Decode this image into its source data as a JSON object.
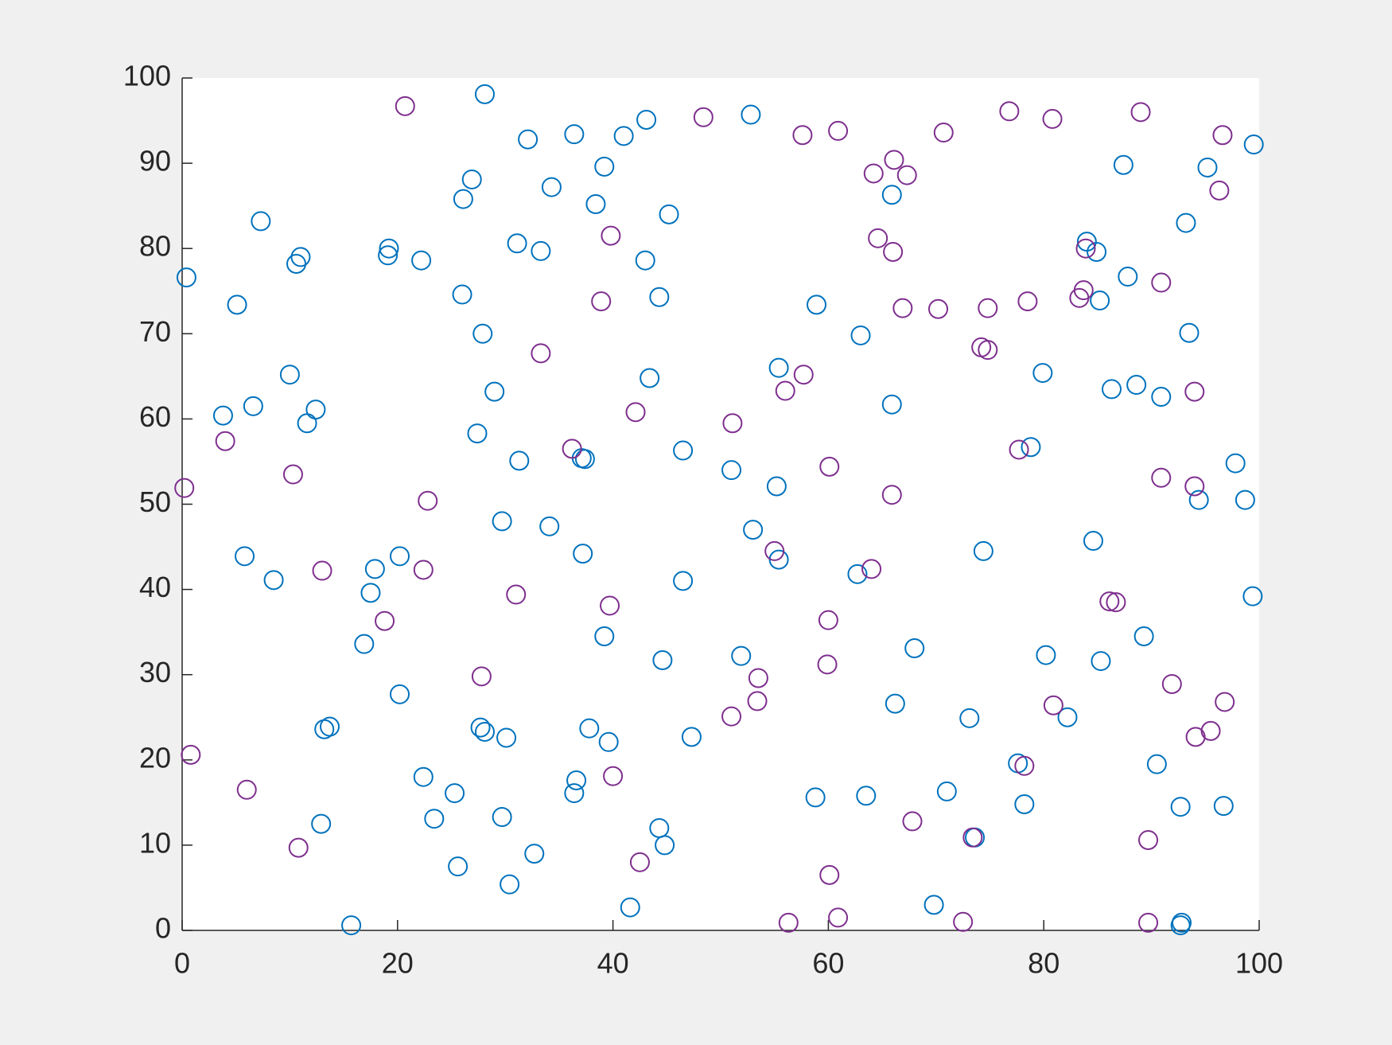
{
  "chart_data": {
    "type": "scatter",
    "marker": "open-circle",
    "xlim": [
      0,
      100
    ],
    "ylim": [
      0,
      100
    ],
    "xticks": [
      0,
      20,
      40,
      60,
      80,
      100
    ],
    "yticks": [
      0,
      10,
      20,
      30,
      40,
      50,
      60,
      70,
      80,
      90,
      100
    ],
    "grid": false,
    "series": [
      {
        "color": "#0072BD",
        "x": [
          0.4,
          7.3,
          5.1,
          10.6,
          11.0,
          19.2,
          19.1,
          22.2,
          26.9,
          26.1,
          28.1,
          32.1,
          36.4,
          34.3,
          39.2,
          38.4,
          41.0,
          43.1,
          45.2,
          43.0,
          44.3,
          31.1,
          33.3,
          26.0,
          27.9,
          52.8,
          58.9,
          63.0,
          65.9,
          55.4,
          43.4,
          29.0,
          27.4,
          31.3,
          37.1,
          37.4,
          46.5,
          51.0,
          55.2,
          29.7,
          34.1,
          37.2,
          53.0,
          55.4,
          46.5,
          62.7,
          65.9,
          79.9,
          78.8,
          87.4,
          84.0,
          84.9,
          87.8,
          85.2,
          86.3,
          88.6,
          90.9,
          93.5,
          93.2,
          95.2,
          99.5,
          97.8,
          94.4,
          98.7,
          99.4,
          84.6,
          74.4,
          89.3,
          85.3,
          80.2,
          68.0,
          66.2,
          73.1,
          82.2,
          77.6,
          90.5,
          78.2,
          71.0,
          63.5,
          58.8,
          92.7,
          96.7,
          73.6,
          69.8,
          92.7,
          92.8,
          51.9,
          44.6,
          39.2,
          47.3,
          39.6,
          37.8,
          30.1,
          27.7,
          28.1,
          36.6,
          36.4,
          44.3,
          44.8,
          29.7,
          32.7,
          30.4,
          41.6,
          22.4,
          25.3,
          23.4,
          25.6,
          20.2,
          16.9,
          17.5,
          17.9,
          20.2,
          13.2,
          13.7,
          12.9,
          15.7,
          5.8,
          8.5,
          3.8,
          6.6,
          10.0,
          12.4,
          11.6
        ],
        "y": [
          76.6,
          83.2,
          73.4,
          78.2,
          79.0,
          80.0,
          79.2,
          78.6,
          88.1,
          85.8,
          98.1,
          92.8,
          93.4,
          87.2,
          89.6,
          85.2,
          93.2,
          95.1,
          84.0,
          78.6,
          74.3,
          80.6,
          79.7,
          74.6,
          70.0,
          95.7,
          73.4,
          69.8,
          86.3,
          66.0,
          64.8,
          63.2,
          58.3,
          55.1,
          55.4,
          55.3,
          56.3,
          54.0,
          52.1,
          48.0,
          47.4,
          44.2,
          47.0,
          43.5,
          41.0,
          41.8,
          61.7,
          65.4,
          56.7,
          89.8,
          80.8,
          79.6,
          76.7,
          73.9,
          63.5,
          64.0,
          62.6,
          70.1,
          83.0,
          89.5,
          92.2,
          54.8,
          50.5,
          50.5,
          39.2,
          45.7,
          44.5,
          34.5,
          31.6,
          32.3,
          33.1,
          26.6,
          24.9,
          25.0,
          19.6,
          19.5,
          14.8,
          16.3,
          15.8,
          15.6,
          14.5,
          14.6,
          10.9,
          3.0,
          0.6,
          0.9,
          32.2,
          31.7,
          34.5,
          22.7,
          22.1,
          23.7,
          22.6,
          23.8,
          23.3,
          17.6,
          16.1,
          12.0,
          10.0,
          13.3,
          9.0,
          5.4,
          2.7,
          18.0,
          16.1,
          13.1,
          7.5,
          27.7,
          33.6,
          39.6,
          42.4,
          43.9,
          23.6,
          23.9,
          12.5,
          0.6,
          43.9,
          41.1,
          60.4,
          61.5,
          65.2,
          61.1,
          59.5
        ]
      },
      {
        "color": "#7E2F8E",
        "x": [
          20.7,
          48.4,
          57.6,
          60.9,
          64.2,
          66.1,
          67.3,
          70.7,
          76.8,
          80.8,
          89.0,
          96.6,
          96.3,
          64.6,
          66.0,
          39.8,
          38.9,
          66.9,
          70.2,
          74.8,
          78.5,
          83.9,
          83.7,
          83.3,
          90.9,
          74.2,
          74.8,
          57.7,
          56.0,
          94.0,
          33.3,
          42.1,
          51.1,
          36.2,
          60.1,
          77.7,
          65.9,
          90.9,
          94.0,
          4.0,
          0.2,
          10.3,
          22.8,
          13.0,
          22.4,
          18.8,
          31.0,
          39.7,
          55.0,
          64.0,
          60.0,
          59.9,
          86.1,
          86.7,
          91.9,
          96.8,
          80.9,
          95.5,
          94.1,
          78.2,
          53.5,
          53.4,
          51.0,
          27.8,
          40.0,
          0.8,
          6.0,
          10.8,
          42.5,
          67.8,
          73.4,
          89.7,
          60.1,
          60.9,
          56.3,
          72.5,
          89.7
        ],
        "y": [
          96.7,
          95.4,
          93.3,
          93.8,
          88.8,
          90.4,
          88.6,
          93.6,
          96.1,
          95.2,
          96.0,
          93.3,
          86.8,
          81.2,
          79.6,
          81.5,
          73.8,
          73.0,
          72.9,
          73.0,
          73.8,
          80.0,
          75.1,
          74.2,
          76.0,
          68.4,
          68.1,
          65.2,
          63.3,
          63.2,
          67.7,
          60.8,
          59.5,
          56.5,
          54.4,
          56.4,
          51.1,
          53.1,
          52.1,
          57.4,
          51.9,
          53.5,
          50.4,
          42.2,
          42.3,
          36.3,
          39.4,
          38.1,
          44.5,
          42.4,
          36.4,
          31.2,
          38.6,
          38.5,
          28.9,
          26.8,
          26.4,
          23.4,
          22.7,
          19.3,
          29.6,
          26.9,
          25.1,
          29.8,
          18.1,
          20.6,
          16.5,
          9.7,
          8.0,
          12.8,
          10.9,
          10.6,
          6.5,
          1.5,
          0.9,
          1.0,
          0.9
        ]
      }
    ]
  }
}
